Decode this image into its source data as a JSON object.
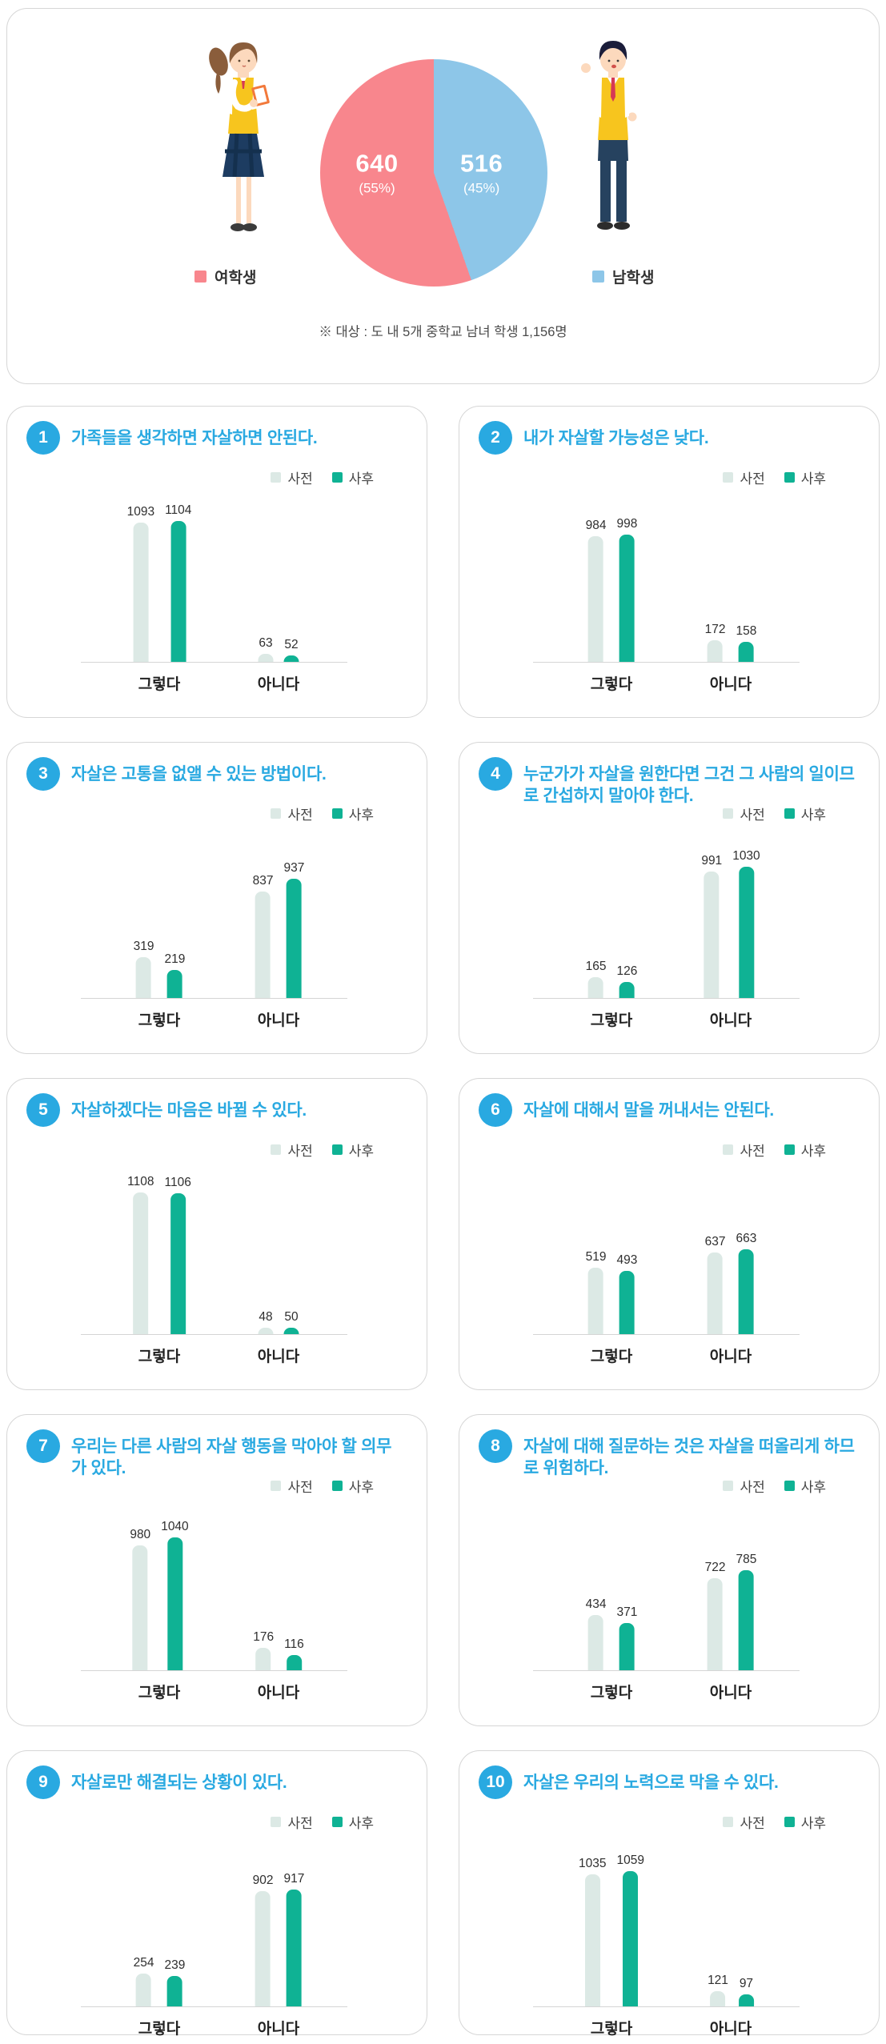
{
  "colors": {
    "accent_blue": "#29a9e1",
    "female_pink": "#f8868d",
    "male_blue": "#8dc6e8",
    "pre_bar": "#dce9e5",
    "post_bar": "#0fb294"
  },
  "chart_data": [
    {
      "type": "pie",
      "labels": [
        "여학생",
        "남학생"
      ],
      "values": [
        640,
        516
      ],
      "value_labels": [
        "640",
        "516"
      ],
      "percents": [
        "(55%)",
        "(45%)"
      ],
      "colors": [
        "#f8868d",
        "#8dc6e8"
      ],
      "legend_position": "below-figures",
      "note": "※ 대상 : 도 내 5개 중학교 남녀 학생 1,156명"
    },
    {
      "type": "bar",
      "num": "1",
      "title": "가족들을 생각하면 자살하면 안된다.",
      "categories": [
        "그렇다",
        "아니다"
      ],
      "ylim": [
        0,
        1160
      ],
      "legend_position": "top-right",
      "series": [
        {
          "name": "사전",
          "values": [
            1093,
            63
          ]
        },
        {
          "name": "사후",
          "values": [
            1104,
            52
          ]
        }
      ]
    },
    {
      "type": "bar",
      "num": "2",
      "title": "내가 자살할 가능성은 낮다.",
      "categories": [
        "그렇다",
        "아니다"
      ],
      "ylim": [
        0,
        1160
      ],
      "legend_position": "top-right",
      "series": [
        {
          "name": "사전",
          "values": [
            984,
            172
          ]
        },
        {
          "name": "사후",
          "values": [
            998,
            158
          ]
        }
      ]
    },
    {
      "type": "bar",
      "num": "3",
      "title": "자살은 고통을 없앨 수 있는 방법이다.",
      "categories": [
        "그렇다",
        "아니다"
      ],
      "ylim": [
        0,
        1160
      ],
      "legend_position": "top-right",
      "series": [
        {
          "name": "사전",
          "values": [
            319,
            837
          ]
        },
        {
          "name": "사후",
          "values": [
            219,
            937
          ]
        }
      ]
    },
    {
      "type": "bar",
      "num": "4",
      "title": "누군가가 자살을 원한다면 그건 그 사람의 일이므로 간섭하지 말아야 한다.",
      "categories": [
        "그렇다",
        "아니다"
      ],
      "ylim": [
        0,
        1160
      ],
      "legend_position": "top-right",
      "series": [
        {
          "name": "사전",
          "values": [
            165,
            991
          ]
        },
        {
          "name": "사후",
          "values": [
            126,
            1030
          ]
        }
      ]
    },
    {
      "type": "bar",
      "num": "5",
      "title": "자살하겠다는 마음은 바뀔 수 있다.",
      "categories": [
        "그렇다",
        "아니다"
      ],
      "ylim": [
        0,
        1160
      ],
      "legend_position": "top-right",
      "series": [
        {
          "name": "사전",
          "values": [
            1108,
            48
          ]
        },
        {
          "name": "사후",
          "values": [
            1106,
            50
          ]
        }
      ]
    },
    {
      "type": "bar",
      "num": "6",
      "title": "자살에 대해서 말을 꺼내서는 안된다.",
      "categories": [
        "그렇다",
        "아니다"
      ],
      "ylim": [
        0,
        1160
      ],
      "legend_position": "top-right",
      "series": [
        {
          "name": "사전",
          "values": [
            519,
            637
          ]
        },
        {
          "name": "사후",
          "values": [
            493,
            663
          ]
        }
      ]
    },
    {
      "type": "bar",
      "num": "7",
      "title": "우리는 다른 사람의 자살 행동을 막아야 할 의무가 있다.",
      "categories": [
        "그렇다",
        "아니다"
      ],
      "ylim": [
        0,
        1160
      ],
      "legend_position": "top-right",
      "series": [
        {
          "name": "사전",
          "values": [
            980,
            176
          ]
        },
        {
          "name": "사후",
          "values": [
            1040,
            116
          ]
        }
      ]
    },
    {
      "type": "bar",
      "num": "8",
      "title": "자살에 대해 질문하는 것은 자살을 떠올리게 하므로 위험하다.",
      "categories": [
        "그렇다",
        "아니다"
      ],
      "ylim": [
        0,
        1160
      ],
      "legend_position": "top-right",
      "series": [
        {
          "name": "사전",
          "values": [
            434,
            722
          ]
        },
        {
          "name": "사후",
          "values": [
            371,
            785
          ]
        }
      ]
    },
    {
      "type": "bar",
      "num": "9",
      "title": "자살로만 해결되는 상황이 있다.",
      "categories": [
        "그렇다",
        "아니다"
      ],
      "ylim": [
        0,
        1160
      ],
      "legend_position": "top-right",
      "series": [
        {
          "name": "사전",
          "values": [
            254,
            902
          ]
        },
        {
          "name": "사후",
          "values": [
            239,
            917
          ]
        }
      ]
    },
    {
      "type": "bar",
      "num": "10",
      "title": "자살은 우리의 노력으로 막을 수 있다.",
      "categories": [
        "그렇다",
        "아니다"
      ],
      "ylim": [
        0,
        1160
      ],
      "legend_position": "top-right",
      "series": [
        {
          "name": "사전",
          "values": [
            1035,
            121
          ]
        },
        {
          "name": "사후",
          "values": [
            1059,
            97
          ]
        }
      ]
    }
  ]
}
